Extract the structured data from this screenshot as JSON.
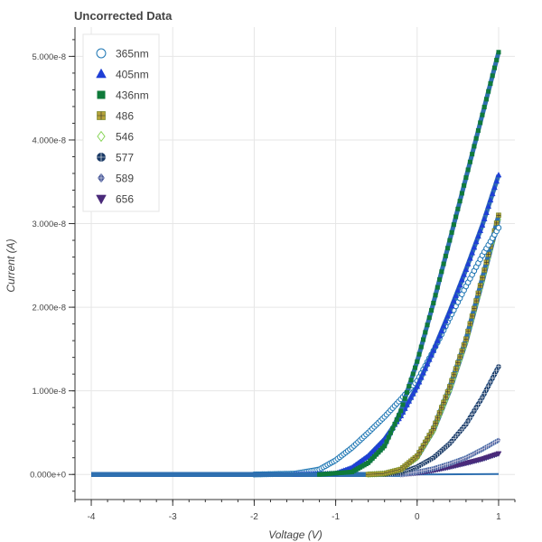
{
  "chart_data": {
    "type": "scatter",
    "title": "Uncorrected Data",
    "xlabel": "Voltage (V)",
    "ylabel": "Current (A)",
    "xlim": [
      -4.2,
      1.2
    ],
    "ylim": [
      -3e-09,
      5.35e-08
    ],
    "x_ticks": [
      -4,
      -3,
      -2,
      -1,
      0,
      1
    ],
    "x_tick_labels": [
      "-4",
      "-3",
      "-2",
      "-1",
      "0",
      "1"
    ],
    "y_ticks": [
      0,
      1e-08,
      2e-08,
      3e-08,
      4e-08,
      5e-08
    ],
    "y_tick_labels": [
      "0.000e+0",
      "1.000e-8",
      "2.000e-8",
      "3.000e-8",
      "4.000e-8",
      "5.000e-8"
    ],
    "grid": true,
    "legend_position": "top-left",
    "series": [
      {
        "name": "365nm",
        "marker": "circle-open",
        "color": "#1f77b4",
        "points": [
          [
            -4.0,
            0
          ],
          [
            -2.0,
            0
          ],
          [
            -1.5,
            1e-10
          ],
          [
            -1.2,
            6e-10
          ],
          [
            -1.0,
            1.7e-09
          ],
          [
            -0.8,
            3.2e-09
          ],
          [
            -0.6,
            5e-09
          ],
          [
            -0.4,
            6.9e-09
          ],
          [
            -0.2,
            9e-09
          ],
          [
            0.0,
            1.12e-08
          ],
          [
            0.2,
            1.48e-08
          ],
          [
            0.4,
            1.87e-08
          ],
          [
            0.6,
            2.25e-08
          ],
          [
            0.8,
            2.62e-08
          ],
          [
            1.0,
            2.95e-08
          ]
        ]
      },
      {
        "name": "405nm",
        "marker": "triangle",
        "color": "#1f3fd6",
        "points": [
          [
            -4.0,
            0
          ],
          [
            -1.5,
            0
          ],
          [
            -1.0,
            1e-10
          ],
          [
            -0.8,
            8e-10
          ],
          [
            -0.6,
            2.2e-09
          ],
          [
            -0.4,
            4.2e-09
          ],
          [
            -0.2,
            7e-09
          ],
          [
            0.0,
            1.05e-08
          ],
          [
            0.2,
            1.48e-08
          ],
          [
            0.4,
            1.95e-08
          ],
          [
            0.6,
            2.45e-08
          ],
          [
            0.8,
            2.98e-08
          ],
          [
            1.0,
            3.58e-08
          ]
        ]
      },
      {
        "name": "436nm",
        "marker": "square",
        "color": "#0f7a3a",
        "points": [
          [
            -4.0,
            0
          ],
          [
            -1.2,
            0
          ],
          [
            -0.8,
            3e-10
          ],
          [
            -0.6,
            1.4e-09
          ],
          [
            -0.4,
            3.4e-09
          ],
          [
            -0.2,
            7.6e-09
          ],
          [
            0.0,
            1.35e-08
          ],
          [
            0.2,
            2.05e-08
          ],
          [
            0.4,
            2.8e-08
          ],
          [
            0.6,
            3.55e-08
          ],
          [
            0.8,
            4.3e-08
          ],
          [
            1.0,
            5.05e-08
          ]
        ]
      },
      {
        "name": "486",
        "marker": "square-cross",
        "color": "#7a8a2a",
        "points": [
          [
            -4.0,
            0
          ],
          [
            -0.6,
            0
          ],
          [
            -0.4,
            1e-10
          ],
          [
            -0.2,
            6e-10
          ],
          [
            0.0,
            2.2e-09
          ],
          [
            0.2,
            5.5e-09
          ],
          [
            0.4,
            1.05e-08
          ],
          [
            0.6,
            1.62e-08
          ],
          [
            0.8,
            2.35e-08
          ],
          [
            1.0,
            3.1e-08
          ]
        ]
      },
      {
        "name": "546",
        "marker": "diamond-open",
        "color": "#7fd14a",
        "points": [
          [
            -4.0,
            0
          ],
          [
            -0.6,
            0
          ],
          [
            -0.4,
            1e-10
          ],
          [
            -0.2,
            6e-10
          ],
          [
            0.0,
            2e-09
          ],
          [
            0.2,
            5.2e-09
          ],
          [
            0.4,
            1e-08
          ],
          [
            0.6,
            1.58e-08
          ],
          [
            0.8,
            2.3e-08
          ],
          [
            1.0,
            3.05e-08
          ]
        ]
      },
      {
        "name": "577",
        "marker": "circle-cross",
        "color": "#1a3a66",
        "points": [
          [
            -4.0,
            0
          ],
          [
            -0.4,
            0
          ],
          [
            -0.2,
            2e-10
          ],
          [
            0.0,
            9e-10
          ],
          [
            0.2,
            2e-09
          ],
          [
            0.4,
            3.7e-09
          ],
          [
            0.6,
            6e-09
          ],
          [
            0.8,
            9.2e-09
          ],
          [
            1.0,
            1.29e-08
          ]
        ]
      },
      {
        "name": "589",
        "marker": "diamond-cross",
        "color": "#4a5a9a",
        "points": [
          [
            -4.0,
            0
          ],
          [
            -0.2,
            0
          ],
          [
            0.0,
            3e-10
          ],
          [
            0.2,
            7e-10
          ],
          [
            0.4,
            1.3e-09
          ],
          [
            0.6,
            2e-09
          ],
          [
            0.8,
            3e-09
          ],
          [
            1.0,
            4.1e-09
          ]
        ]
      },
      {
        "name": "656",
        "marker": "inverted-triangle",
        "color": "#4a2a7a",
        "points": [
          [
            -4.0,
            0
          ],
          [
            -0.2,
            0
          ],
          [
            0.0,
            2e-10
          ],
          [
            0.2,
            5e-10
          ],
          [
            0.4,
            9e-10
          ],
          [
            0.6,
            1.35e-09
          ],
          [
            0.8,
            1.85e-09
          ],
          [
            1.0,
            2.5e-09
          ]
        ]
      }
    ],
    "near_zero_curve": {
      "color": "#2e6fb0",
      "points": [
        [
          -4.0,
          0
        ],
        [
          0.0,
          0
        ],
        [
          1.0,
          5e-11
        ]
      ]
    }
  }
}
